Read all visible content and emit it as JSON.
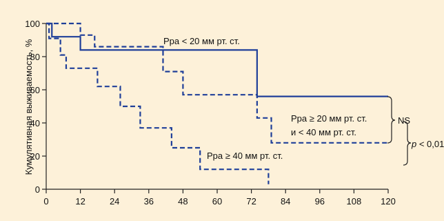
{
  "chart_data": {
    "type": "line",
    "ylabel": "Кумулятивная выживаемость, %",
    "xlabel": "",
    "xlim": [
      0,
      120
    ],
    "ylim": [
      0,
      100
    ],
    "xticks": [
      0,
      12,
      24,
      36,
      48,
      60,
      72,
      84,
      96,
      108,
      120
    ],
    "yticks": [
      0,
      20,
      40,
      60,
      80,
      100
    ],
    "grid": false,
    "series": [
      {
        "name": "Ppa < 20 мм рт. ст.",
        "style": "solid",
        "color": "#1f3f99",
        "x": [
          0,
          2,
          12,
          74,
          120
        ],
        "y": [
          100,
          92,
          84,
          56,
          56
        ]
      },
      {
        "name": "Ppa ≥ 20 мм рт. ст. и < 40 мм рт. ст.",
        "style": "dashed",
        "color": "#1f3f99",
        "x": [
          0,
          12,
          17,
          41,
          48,
          74,
          79,
          120
        ],
        "y": [
          100,
          93,
          86,
          71,
          57,
          43,
          28,
          28
        ]
      },
      {
        "name": "Ppa ≥ 40 мм рт. ст.",
        "style": "dashed",
        "color": "#1f3f99",
        "x": [
          0,
          1,
          5,
          7,
          18,
          26,
          33,
          44,
          54,
          78
        ],
        "y": [
          100,
          91,
          81,
          73,
          62,
          50,
          37,
          25,
          12,
          3
        ]
      }
    ],
    "annotations": {
      "label_lt20": "Ppa < 20 мм рт. ст.",
      "label_mid_line1": "Ppa ≥ 20 мм рт. ст.",
      "label_mid_line2": "и < 40 мм рт. ст.",
      "label_ge40": "Ppa ≥ 40 мм рт. ст.",
      "ns": "NS",
      "p_prefix": "p",
      "p_value": " < 0,01"
    }
  }
}
